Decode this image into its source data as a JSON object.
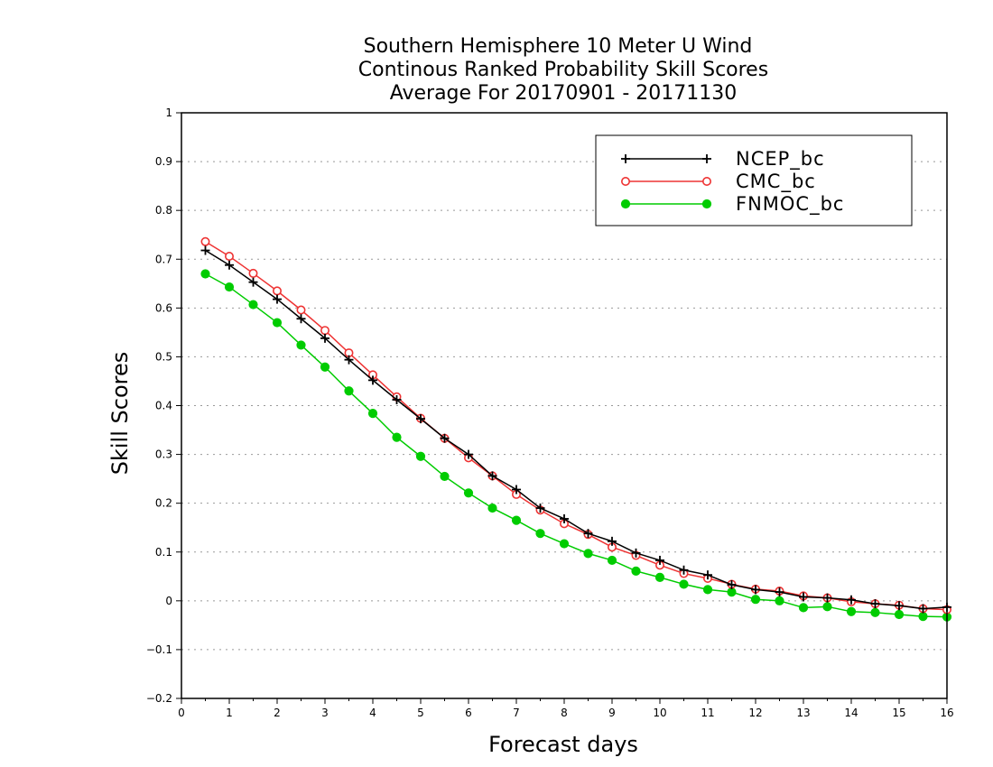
{
  "chart_data": {
    "type": "line",
    "title": [
      "Southern Hemisphere 10 Meter U Wind",
      "Continous Ranked Probability Skill Scores",
      "Average For 20170901 - 20171130"
    ],
    "xlabel": "Forecast days",
    "ylabel": "Skill Scores",
    "xlim": [
      0,
      16
    ],
    "ylim": [
      -0.2,
      1
    ],
    "xticks": [
      0,
      1,
      2,
      3,
      4,
      5,
      6,
      7,
      8,
      9,
      10,
      11,
      12,
      13,
      14,
      15,
      16
    ],
    "yticks": [
      -0.2,
      -0.1,
      0,
      0.1,
      0.2,
      0.3,
      0.4,
      0.5,
      0.6,
      0.7,
      0.8,
      0.9,
      1
    ],
    "ytick_labels": [
      "−0.2",
      "−0.1",
      "0",
      "0.1",
      "0.2",
      "0.3",
      "0.4",
      "0.5",
      "0.6",
      "0.7",
      "0.8",
      "0.9",
      "1"
    ],
    "grid": "horizontal dotted",
    "legend_position": "top-right",
    "x": [
      0.5,
      1,
      1.5,
      2,
      2.5,
      3,
      3.5,
      4,
      4.5,
      5,
      5.5,
      6,
      6.5,
      7,
      7.5,
      8,
      8.5,
      9,
      9.5,
      10,
      10.5,
      11,
      11.5,
      12,
      12.5,
      13,
      13.5,
      14,
      14.5,
      15,
      15.5,
      16
    ],
    "series": [
      {
        "name": "NCEP_bc",
        "color": "#000000",
        "marker": "plus",
        "values": [
          0.718,
          0.688,
          0.653,
          0.618,
          0.578,
          0.538,
          0.494,
          0.452,
          0.412,
          0.373,
          0.333,
          0.3,
          0.256,
          0.228,
          0.19,
          0.168,
          0.138,
          0.122,
          0.098,
          0.083,
          0.063,
          0.053,
          0.033,
          0.023,
          0.018,
          0.008,
          0.006,
          0.002,
          -0.006,
          -0.01,
          -0.016,
          -0.013
        ]
      },
      {
        "name": "CMC_bc",
        "color": "#ee3333",
        "marker": "open-circle",
        "values": [
          0.736,
          0.706,
          0.671,
          0.635,
          0.596,
          0.554,
          0.508,
          0.463,
          0.418,
          0.374,
          0.333,
          0.293,
          0.256,
          0.218,
          0.186,
          0.158,
          0.136,
          0.11,
          0.093,
          0.073,
          0.056,
          0.046,
          0.034,
          0.024,
          0.02,
          0.01,
          0.006,
          -0.002,
          -0.006,
          -0.009,
          -0.016,
          -0.018
        ]
      },
      {
        "name": "FNMOC_bc",
        "color": "#00cc00",
        "marker": "filled-circle",
        "values": [
          0.67,
          0.643,
          0.607,
          0.57,
          0.524,
          0.479,
          0.43,
          0.384,
          0.335,
          0.296,
          0.255,
          0.221,
          0.19,
          0.165,
          0.138,
          0.117,
          0.097,
          0.083,
          0.061,
          0.048,
          0.034,
          0.023,
          0.018,
          0.003,
          0.0,
          -0.014,
          -0.012,
          -0.022,
          -0.024,
          -0.028,
          -0.032,
          -0.033
        ]
      }
    ]
  }
}
